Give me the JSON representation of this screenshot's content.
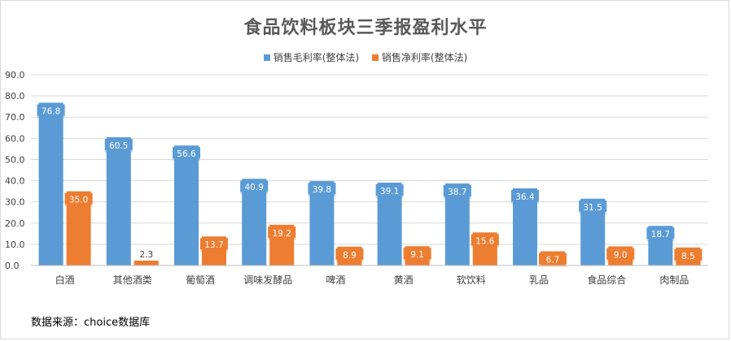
{
  "colors": {
    "gross": "#5b9bd5",
    "net": "#ed7d31"
  },
  "source": "数据来源：choice数据库",
  "chart_data": {
    "type": "bar",
    "title": "食品饮料板块三季报盈利水平",
    "categories": [
      "白酒",
      "其他酒类",
      "葡萄酒",
      "调味发酵品",
      "啤酒",
      "黄酒",
      "软饮料",
      "乳品",
      "食品综合",
      "肉制品"
    ],
    "series": [
      {
        "name": "销售毛利率(整体法)",
        "values": [
          76.8,
          60.5,
          56.6,
          40.9,
          39.8,
          39.1,
          38.7,
          36.4,
          31.5,
          18.7
        ]
      },
      {
        "name": "销售净利率(整体法)",
        "values": [
          35.0,
          2.3,
          13.7,
          19.2,
          8.9,
          9.1,
          15.6,
          6.7,
          9.0,
          8.5
        ]
      }
    ],
    "ylim": [
      0,
      90
    ],
    "yticks": [
      "0.0",
      "10.0",
      "20.0",
      "30.0",
      "40.0",
      "50.0",
      "60.0",
      "70.0",
      "80.0",
      "90.0"
    ],
    "grid": true,
    "legend_position": "top",
    "data_labels": true
  }
}
